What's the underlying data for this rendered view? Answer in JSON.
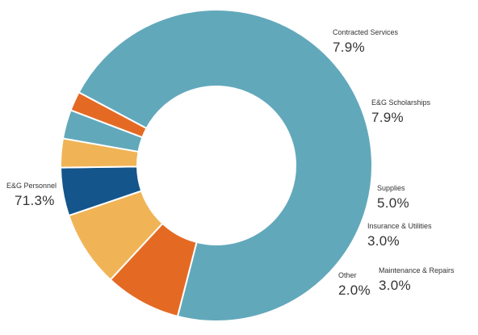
{
  "chart_data": {
    "type": "pie",
    "donut": true,
    "slices": [
      {
        "label": "E&G Personnel",
        "value_text": "71.3%",
        "value": 71.3,
        "color": "#62a8bb"
      },
      {
        "label": "Contracted Services",
        "value_text": "7.9%",
        "value": 7.9,
        "color": "#e46a24"
      },
      {
        "label": "E&G Scholarships",
        "value_text": "7.9%",
        "value": 7.9,
        "color": "#f0b456"
      },
      {
        "label": "Supplies",
        "value_text": "5.0%",
        "value": 5.0,
        "color": "#14558b"
      },
      {
        "label": "Insurance & Utilities",
        "value_text": "3.0%",
        "value": 3.0,
        "color": "#f0b456"
      },
      {
        "label": "Maintenance & Repairs",
        "value_text": "3.0%",
        "value": 3.0,
        "color": "#62a8bb"
      },
      {
        "label": "Other",
        "value_text": "2.0%",
        "value": 2.0,
        "color": "#e46a24"
      }
    ]
  }
}
